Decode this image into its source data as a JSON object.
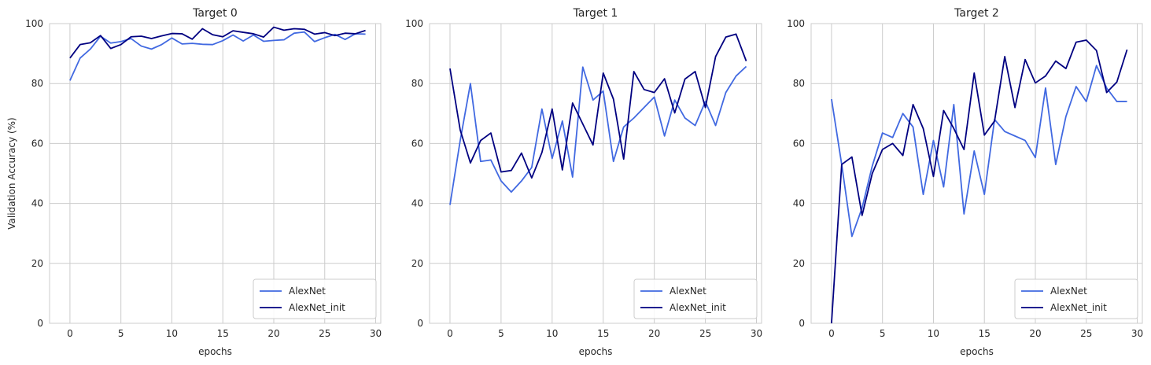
{
  "chart_data": [
    {
      "type": "line",
      "title": "Target 0",
      "xlabel": "epochs",
      "ylabel": "Validation Accuracy (%)",
      "xlim": [
        -2,
        30.5
      ],
      "ylim": [
        0,
        100
      ],
      "xticks": [
        0,
        5,
        10,
        15,
        20,
        25,
        30
      ],
      "yticks": [
        0,
        20,
        40,
        60,
        80,
        100
      ],
      "grid": true,
      "legend_position": "lower-right",
      "x": [
        0,
        1,
        2,
        3,
        4,
        5,
        6,
        7,
        8,
        9,
        10,
        11,
        12,
        13,
        14,
        15,
        16,
        17,
        18,
        19,
        20,
        21,
        22,
        23,
        24,
        25,
        26,
        27,
        28,
        29
      ],
      "series": [
        {
          "name": "AlexNet",
          "color": "#4169e1",
          "values": [
            81.0,
            88.5,
            91.5,
            95.8,
            93.5,
            94.0,
            95.0,
            92.5,
            91.5,
            93.0,
            95.2,
            93.2,
            93.4,
            93.1,
            93.0,
            94.3,
            96.2,
            94.2,
            96.2,
            94.1,
            94.4,
            94.6,
            96.8,
            97.2,
            94.0,
            95.3,
            96.4,
            94.7,
            96.6,
            96.5
          ]
        },
        {
          "name": "AlexNet_init",
          "color": "#000080",
          "values": [
            88.5,
            93.0,
            93.6,
            96.0,
            91.7,
            93.0,
            95.6,
            95.8,
            95.0,
            95.9,
            96.7,
            96.6,
            94.8,
            98.3,
            96.3,
            95.6,
            97.6,
            97.1,
            96.6,
            95.5,
            98.8,
            97.8,
            98.3,
            98.1,
            96.5,
            97.0,
            96.0,
            96.8,
            96.6,
            97.7
          ]
        }
      ]
    },
    {
      "type": "line",
      "title": "Target 1",
      "xlabel": "epochs",
      "ylabel": "",
      "xlim": [
        -2,
        30.5
      ],
      "ylim": [
        0,
        100
      ],
      "xticks": [
        0,
        5,
        10,
        15,
        20,
        25,
        30
      ],
      "yticks": [
        0,
        20,
        40,
        60,
        80,
        100
      ],
      "grid": true,
      "legend_position": "lower-right",
      "x": [
        0,
        1,
        2,
        3,
        4,
        5,
        6,
        7,
        8,
        9,
        10,
        11,
        12,
        13,
        14,
        15,
        16,
        17,
        18,
        19,
        20,
        21,
        22,
        23,
        24,
        25,
        26,
        27,
        28,
        29
      ],
      "series": [
        {
          "name": "AlexNet",
          "color": "#4169e1",
          "values": [
            39.5,
            61.0,
            80.0,
            54.0,
            54.5,
            47.5,
            43.8,
            47.5,
            52.0,
            71.5,
            55.0,
            67.5,
            48.8,
            85.5,
            74.5,
            77.5,
            54.0,
            65.5,
            68.5,
            72.0,
            75.5,
            62.5,
            74.5,
            68.5,
            66.0,
            74.0,
            66.0,
            77.0,
            82.5,
            85.7
          ]
        },
        {
          "name": "AlexNet_init",
          "color": "#000080",
          "values": [
            85.0,
            64.5,
            53.5,
            61.0,
            63.5,
            50.5,
            51.0,
            56.8,
            48.5,
            57.0,
            71.5,
            51.2,
            73.5,
            66.5,
            59.5,
            83.5,
            74.8,
            54.8,
            84.0,
            78.0,
            77.0,
            81.6,
            70.2,
            81.5,
            84.0,
            72.0,
            89.0,
            95.5,
            96.5,
            87.5
          ]
        }
      ]
    },
    {
      "type": "line",
      "title": "Target 2",
      "xlabel": "epochs",
      "ylabel": "",
      "xlim": [
        -2,
        30.5
      ],
      "ylim": [
        0,
        100
      ],
      "xticks": [
        0,
        5,
        10,
        15,
        20,
        25,
        30
      ],
      "yticks": [
        0,
        20,
        40,
        60,
        80,
        100
      ],
      "grid": true,
      "legend_position": "lower-right",
      "x": [
        0,
        1,
        2,
        3,
        4,
        5,
        6,
        7,
        8,
        9,
        10,
        11,
        12,
        13,
        14,
        15,
        16,
        17,
        18,
        19,
        20,
        21,
        22,
        23,
        24,
        25,
        26,
        27,
        28,
        29
      ],
      "series": [
        {
          "name": "AlexNet",
          "color": "#4169e1",
          "values": [
            74.8,
            53.0,
            29.0,
            38.5,
            52.5,
            63.5,
            62.0,
            70.0,
            65.5,
            43.0,
            61.0,
            45.5,
            73.0,
            36.5,
            57.5,
            43.0,
            68.0,
            64.0,
            62.5,
            61.0,
            55.3,
            78.5,
            53.0,
            69.0,
            79.0,
            74.0,
            86.0,
            78.5,
            74.0,
            74.0
          ]
        },
        {
          "name": "AlexNet_init",
          "color": "#000080",
          "values": [
            0.0,
            53.0,
            55.5,
            36.0,
            50.0,
            58.0,
            60.0,
            56.0,
            73.0,
            65.0,
            49.0,
            71.0,
            65.0,
            58.0,
            83.5,
            62.8,
            67.5,
            89.0,
            72.0,
            88.0,
            80.2,
            82.5,
            87.5,
            85.0,
            93.8,
            94.5,
            91.0,
            77.0,
            80.5,
            91.3
          ]
        }
      ]
    }
  ]
}
